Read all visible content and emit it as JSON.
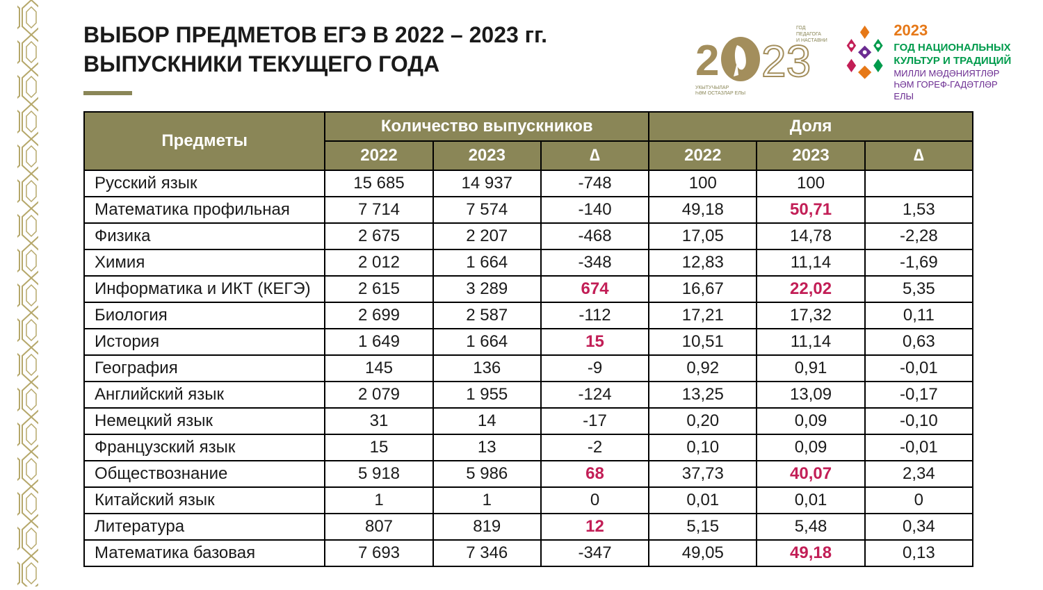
{
  "title": {
    "line1": "ВЫБОР ПРЕДМЕТОВ ЕГЭ В 2022 – 2023 гг.",
    "line2": "ВЫПУСКНИКИ ТЕКУЩЕГО ГОДА"
  },
  "logoPedagog": {
    "topText": "ГОД ПЕДАГОГА И НАСТАВНИКА",
    "bottomText": "УКЫТУЧЫЛАР ҺӘМ ОСТАЗЛАР ЕЛЫ"
  },
  "logoCulture": {
    "year": "2023",
    "line1": "ГОД НАЦИОНАЛЬНЫХ",
    "line2": "КУЛЬТУР И ТРАДИЦИЙ",
    "line3": "МИЛЛИ МӘДӘНИЯТЛӘР",
    "line4": "ҺӘМ ГОРЕФ-ГАДӘТЛӘР ЕЛЫ"
  },
  "table": {
    "type": "table",
    "colors": {
      "header_bg": "#8a8657",
      "header_text": "#ffffff",
      "border": "#000000",
      "cell_text": "#1a1a1a",
      "highlight": "#c21e56"
    },
    "headers": {
      "subjects": "Предметы",
      "count": "Количество выпускников",
      "share": "Доля",
      "y2022": "2022",
      "y2023": "2023",
      "delta": "∆"
    },
    "rows": [
      {
        "subject": "Русский язык",
        "c2022": "15 685",
        "c2023": "14 937",
        "cDelta": "-748",
        "s2022": "100",
        "s2023": "100",
        "sDelta": "",
        "hl": []
      },
      {
        "subject": "Математика профильная",
        "c2022": "7 714",
        "c2023": "7 574",
        "cDelta": "-140",
        "s2022": "49,18",
        "s2023": "50,71",
        "sDelta": "1,53",
        "hl": [
          "s2023"
        ]
      },
      {
        "subject": "Физика",
        "c2022": "2 675",
        "c2023": "2 207",
        "cDelta": "-468",
        "s2022": "17,05",
        "s2023": "14,78",
        "sDelta": "-2,28",
        "hl": []
      },
      {
        "subject": "Химия",
        "c2022": "2 012",
        "c2023": "1 664",
        "cDelta": "-348",
        "s2022": "12,83",
        "s2023": "11,14",
        "sDelta": "-1,69",
        "hl": []
      },
      {
        "subject": "Информатика и ИКТ (КЕГЭ)",
        "c2022": "2 615",
        "c2023": "3 289",
        "cDelta": "674",
        "s2022": "16,67",
        "s2023": "22,02",
        "sDelta": "5,35",
        "hl": [
          "cDelta",
          "s2023"
        ]
      },
      {
        "subject": "Биология",
        "c2022": "2 699",
        "c2023": "2 587",
        "cDelta": "-112",
        "s2022": "17,21",
        "s2023": "17,32",
        "sDelta": "0,11",
        "hl": []
      },
      {
        "subject": "История",
        "c2022": "1 649",
        "c2023": "1 664",
        "cDelta": "15",
        "s2022": "10,51",
        "s2023": "11,14",
        "sDelta": "0,63",
        "hl": [
          "cDelta"
        ]
      },
      {
        "subject": "География",
        "c2022": "145",
        "c2023": "136",
        "cDelta": "-9",
        "s2022": "0,92",
        "s2023": "0,91",
        "sDelta": "-0,01",
        "hl": []
      },
      {
        "subject": "Английский язык",
        "c2022": "2 079",
        "c2023": "1 955",
        "cDelta": "-124",
        "s2022": "13,25",
        "s2023": "13,09",
        "sDelta": "-0,17",
        "hl": []
      },
      {
        "subject": "Немецкий язык",
        "c2022": "31",
        "c2023": "14",
        "cDelta": "-17",
        "s2022": "0,20",
        "s2023": "0,09",
        "sDelta": "-0,10",
        "hl": []
      },
      {
        "subject": "Французский язык",
        "c2022": "15",
        "c2023": "13",
        "cDelta": "-2",
        "s2022": "0,10",
        "s2023": "0,09",
        "sDelta": "-0,01",
        "hl": []
      },
      {
        "subject": "Обществознание",
        "c2022": "5 918",
        "c2023": "5 986",
        "cDelta": "68",
        "s2022": "37,73",
        "s2023": "40,07",
        "sDelta": "2,34",
        "hl": [
          "cDelta",
          "s2023"
        ]
      },
      {
        "subject": "Китайский язык",
        "c2022": "1",
        "c2023": "1",
        "cDelta": "0",
        "s2022": "0,01",
        "s2023": "0,01",
        "sDelta": "0",
        "hl": []
      },
      {
        "subject": "Литература",
        "c2022": "807",
        "c2023": "819",
        "cDelta": "12",
        "s2022": "5,15",
        "s2023": "5,48",
        "sDelta": "0,34",
        "hl": [
          "cDelta"
        ]
      },
      {
        "subject": "Математика базовая",
        "c2022": "7 693",
        "c2023": "7 346",
        "cDelta": "-347",
        "s2022": "49,05",
        "s2023": "49,18",
        "sDelta": "0,13",
        "hl": [
          "s2023"
        ]
      }
    ]
  },
  "ornament": {
    "stroke": "#b5a76a",
    "strokeWidth": 2
  }
}
